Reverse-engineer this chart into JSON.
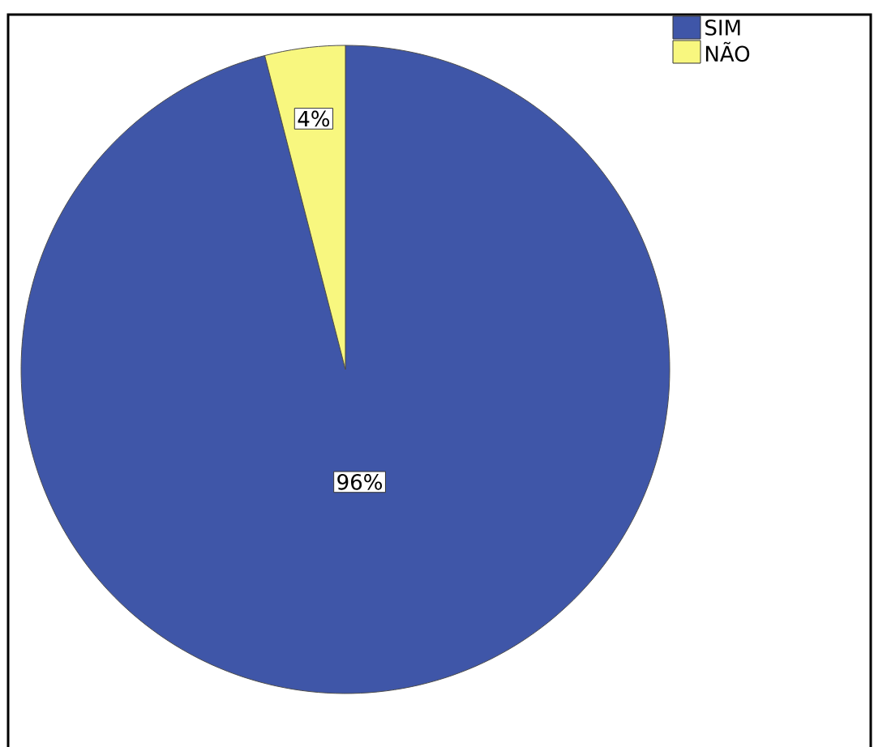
{
  "chart_data": {
    "type": "pie",
    "categories": [
      "SIM",
      "NÃO"
    ],
    "values": [
      96,
      4
    ],
    "colors": [
      "#3f56a8",
      "#f8f77f"
    ],
    "value_labels": [
      "96%",
      "4%"
    ],
    "legend": "top right"
  }
}
